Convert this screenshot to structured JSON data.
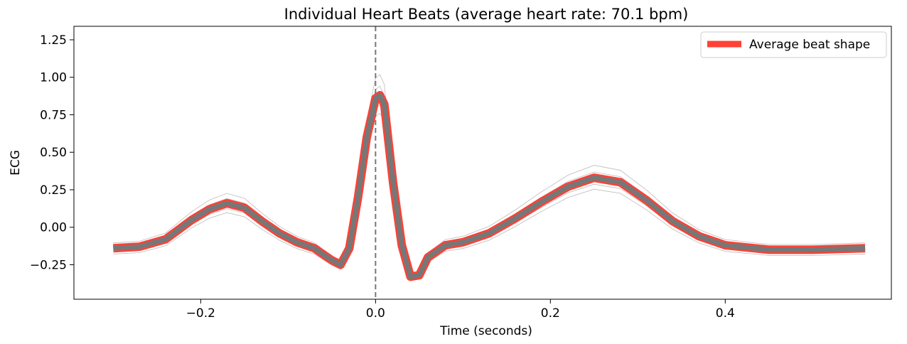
{
  "chart_data": {
    "type": "line",
    "title": "Individual Heart Beats (average heart rate: 70.1 bpm)",
    "xlabel": "Time (seconds)",
    "ylabel": "ECG",
    "xlim": [
      -0.345,
      0.59
    ],
    "ylim": [
      -0.48,
      1.34
    ],
    "xticks": [
      -0.2,
      0.0,
      0.2,
      0.4
    ],
    "xtick_labels": [
      "−0.2",
      "0.0",
      "0.2",
      "0.4"
    ],
    "yticks": [
      -0.25,
      0.0,
      0.25,
      0.5,
      0.75,
      1.0,
      1.25
    ],
    "ytick_labels": [
      "−0.25",
      "0.00",
      "0.25",
      "0.50",
      "0.75",
      "1.00",
      "1.25"
    ],
    "grid": false,
    "legend": {
      "position": "top-right",
      "entries": [
        "Average beat shape"
      ]
    },
    "vline": {
      "x": 0.0,
      "style": "dashed",
      "color": "#777777"
    },
    "colors": {
      "average": "#FF4136",
      "beats": "#777777",
      "individual": "#bbbbbb"
    },
    "series": [
      {
        "name": "Average beat shape",
        "x": [
          -0.3,
          -0.27,
          -0.24,
          -0.21,
          -0.19,
          -0.17,
          -0.15,
          -0.13,
          -0.11,
          -0.09,
          -0.07,
          -0.05,
          -0.04,
          -0.03,
          -0.02,
          -0.01,
          0.0,
          0.005,
          0.01,
          0.02,
          0.03,
          0.04,
          0.05,
          0.06,
          0.08,
          0.1,
          0.13,
          0.16,
          0.19,
          0.22,
          0.25,
          0.28,
          0.31,
          0.34,
          0.37,
          0.4,
          0.45,
          0.5,
          0.56
        ],
        "y": [
          -0.14,
          -0.13,
          -0.08,
          0.05,
          0.12,
          0.16,
          0.13,
          0.04,
          -0.04,
          -0.1,
          -0.14,
          -0.22,
          -0.25,
          -0.14,
          0.2,
          0.6,
          0.86,
          0.88,
          0.82,
          0.3,
          -0.12,
          -0.33,
          -0.32,
          -0.2,
          -0.12,
          -0.1,
          -0.04,
          0.06,
          0.17,
          0.27,
          0.33,
          0.3,
          0.18,
          0.04,
          -0.06,
          -0.12,
          -0.15,
          -0.15,
          -0.14
        ]
      }
    ],
    "individual_beats": [
      {
        "dy": 0.0,
        "amp": 1.0
      },
      {
        "dy": -0.03,
        "amp": 0.96
      },
      {
        "dy": 0.025,
        "amp": 1.04
      },
      {
        "dy": -0.05,
        "amp": 0.92
      },
      {
        "dy": 0.05,
        "amp": 1.1
      },
      {
        "dy": -0.01,
        "amp": 1.0
      }
    ]
  }
}
